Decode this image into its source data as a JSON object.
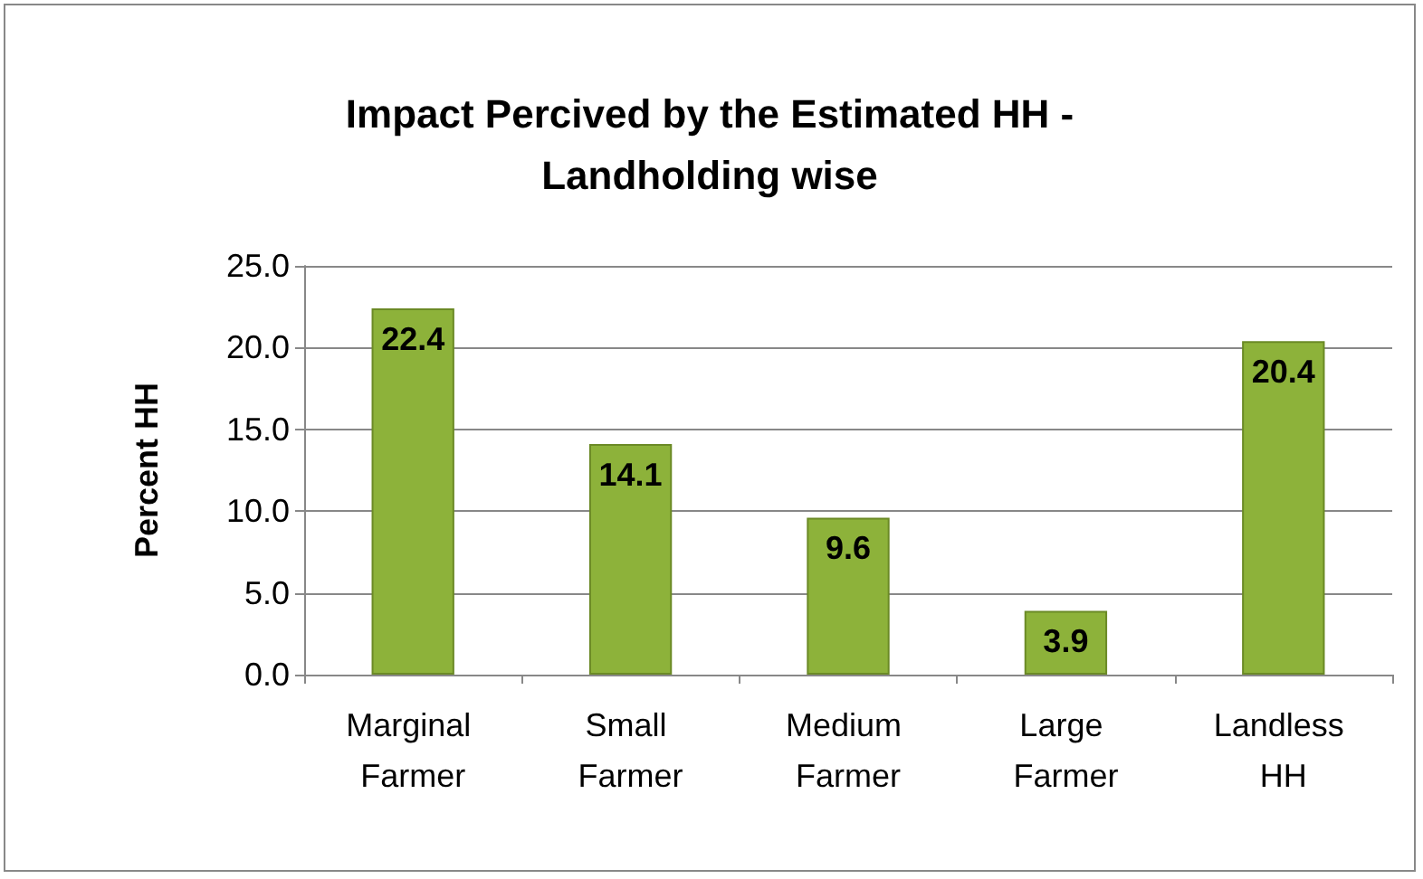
{
  "chart_data": {
    "type": "bar",
    "title": "Impact Percived by the Estimated HH -\nLandholding wise",
    "ylabel": "Percent HH",
    "categories": [
      "Marginal Farmer",
      "Small Farmer",
      "Medium Farmer",
      "Large Farmer",
      "Landless HH"
    ],
    "values": [
      22.4,
      14.1,
      9.6,
      3.9,
      20.4
    ],
    "color": "#8db23a",
    "ylim": [
      0,
      25
    ],
    "yticks": [
      {
        "value": 0,
        "label": "0.0"
      },
      {
        "value": 5,
        "label": "5.0"
      },
      {
        "value": 10,
        "label": "10.0"
      },
      {
        "value": 15,
        "label": "15.0"
      },
      {
        "value": 20,
        "label": "20.0"
      },
      {
        "value": 25,
        "label": "25.0"
      }
    ],
    "grid": true,
    "data_labels": true
  }
}
